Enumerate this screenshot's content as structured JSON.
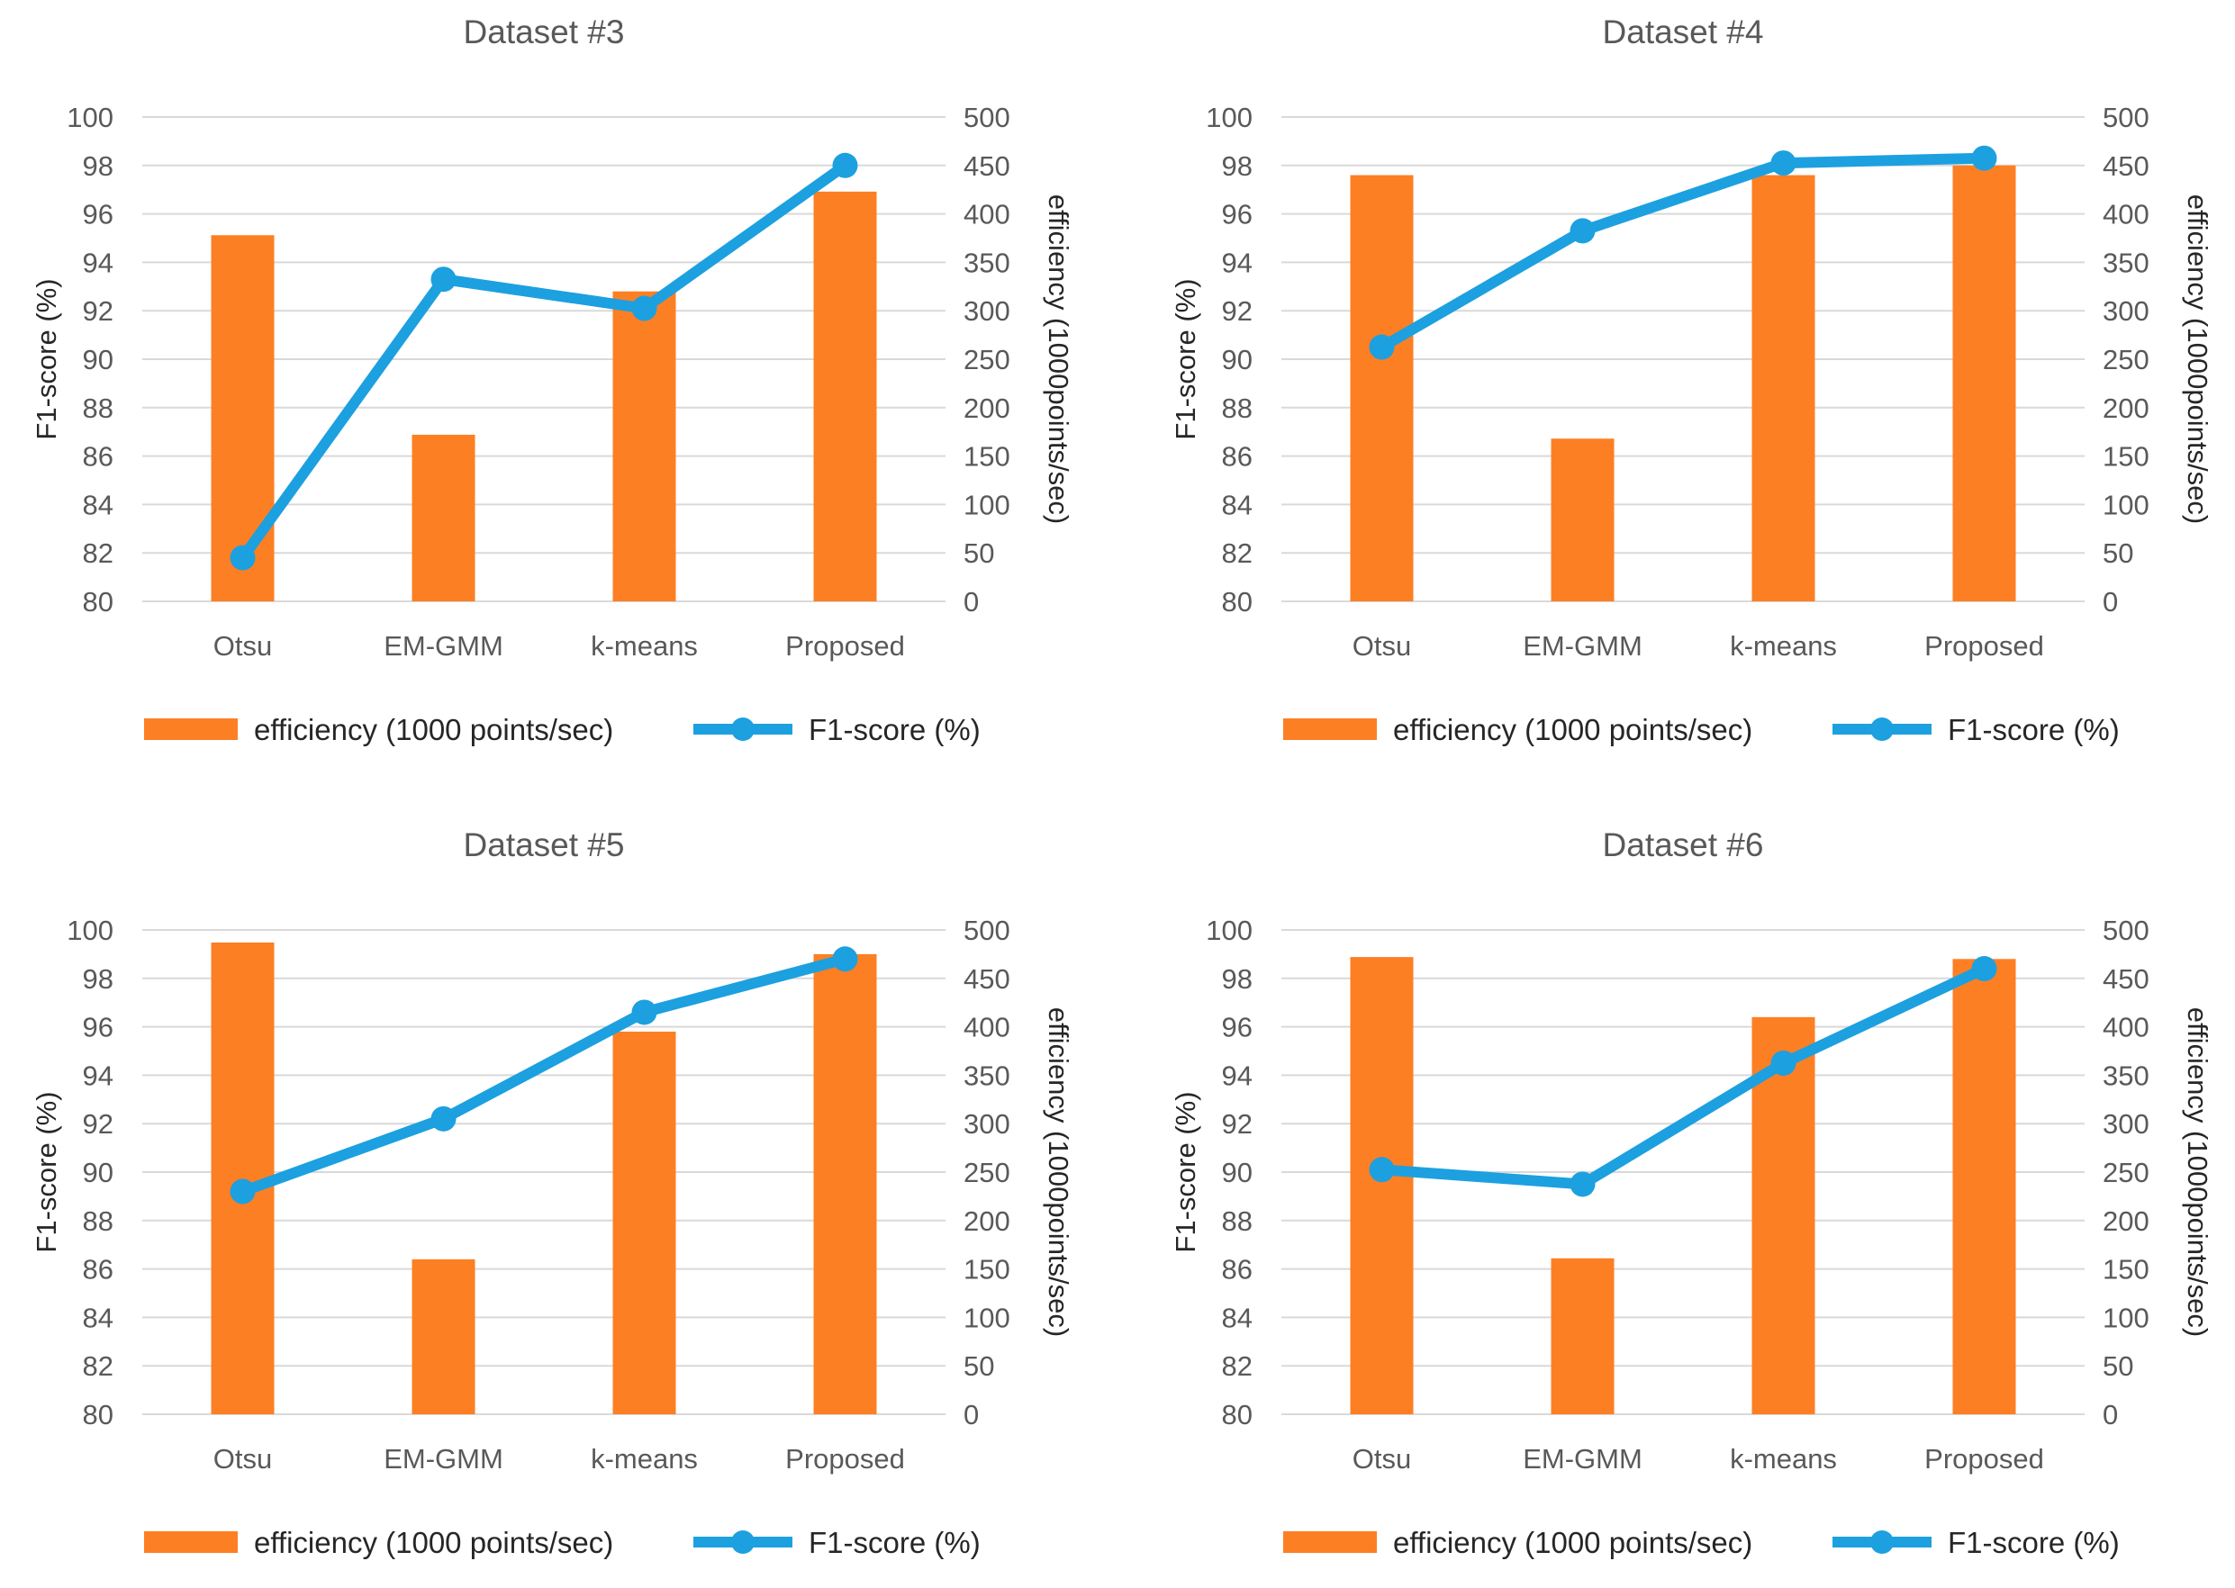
{
  "chart_data": [
    {
      "type": "bar-line-combo",
      "title": "Dataset #3",
      "categories": [
        "Otsu",
        "EM-GMM",
        "k-means",
        "Proposed"
      ],
      "series": [
        {
          "name": "efficiency (1000 points/sec)",
          "type": "bar",
          "axis": "right",
          "values": [
            378,
            172,
            320,
            423
          ]
        },
        {
          "name": "F1-score (%)",
          "type": "line",
          "axis": "left",
          "values": [
            81.8,
            93.3,
            92.1,
            98.0
          ]
        }
      ],
      "y_left": {
        "label": "F1-score (%)",
        "range": [
          80,
          100
        ],
        "step": 2
      },
      "y_right": {
        "label": "efficiency (1000points/sec)",
        "range": [
          0,
          500
        ],
        "step": 50
      },
      "legend": "bottom"
    },
    {
      "type": "bar-line-combo",
      "title": "Dataset #4",
      "categories": [
        "Otsu",
        "EM-GMM",
        "k-means",
        "Proposed"
      ],
      "series": [
        {
          "name": "efficiency (1000 points/sec)",
          "type": "bar",
          "axis": "right",
          "values": [
            440,
            168,
            440,
            450
          ]
        },
        {
          "name": "F1-score (%)",
          "type": "line",
          "axis": "left",
          "values": [
            90.5,
            95.3,
            98.1,
            98.3
          ]
        }
      ],
      "y_left": {
        "label": "F1-score (%)",
        "range": [
          80,
          100
        ],
        "step": 2
      },
      "y_right": {
        "label": "efficiency (1000points/sec)",
        "range": [
          0,
          500
        ],
        "step": 50
      },
      "legend": "bottom"
    },
    {
      "type": "bar-line-combo",
      "title": "Dataset #5",
      "categories": [
        "Otsu",
        "EM-GMM",
        "k-means",
        "Proposed"
      ],
      "series": [
        {
          "name": "efficiency (1000 points/sec)",
          "type": "bar",
          "axis": "right",
          "values": [
            487,
            160,
            395,
            475
          ]
        },
        {
          "name": "F1-score (%)",
          "type": "line",
          "axis": "left",
          "values": [
            89.2,
            92.2,
            96.6,
            98.8
          ]
        }
      ],
      "y_left": {
        "label": "F1-score (%)",
        "range": [
          80,
          100
        ],
        "step": 2
      },
      "y_right": {
        "label": "efficiency (1000points/sec)",
        "range": [
          0,
          500
        ],
        "step": 50
      },
      "legend": "bottom"
    },
    {
      "type": "bar-line-combo",
      "title": "Dataset #6",
      "categories": [
        "Otsu",
        "EM-GMM",
        "k-means",
        "Proposed"
      ],
      "series": [
        {
          "name": "efficiency (1000 points/sec)",
          "type": "bar",
          "axis": "right",
          "values": [
            472,
            161,
            410,
            470
          ]
        },
        {
          "name": "F1-score (%)",
          "type": "line",
          "axis": "left",
          "values": [
            90.1,
            89.5,
            94.5,
            98.4
          ]
        }
      ],
      "y_left": {
        "label": "F1-score (%)",
        "range": [
          80,
          100
        ],
        "step": 2
      },
      "y_right": {
        "label": "efficiency (1000points/sec)",
        "range": [
          0,
          500
        ],
        "step": 50
      },
      "legend": "bottom"
    }
  ],
  "colors": {
    "bar": "#FD7F23",
    "line": "#1CA0E0",
    "grid": "#D9D9D9",
    "text": "#595959"
  }
}
